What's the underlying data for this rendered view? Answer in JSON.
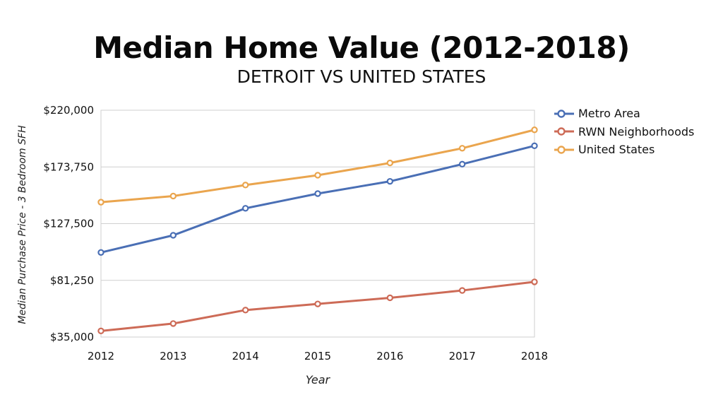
{
  "chart_data": {
    "type": "line",
    "title": "Median Home Value (2012-2018)",
    "subtitle": "DETROIT VS UNITED STATES",
    "xlabel": "Year",
    "ylabel": "Median Purchase Price - 3 Bedroom SFH",
    "x": [
      "2012",
      "2013",
      "2014",
      "2015",
      "2016",
      "2017",
      "2018"
    ],
    "ylim": [
      35000,
      220000
    ],
    "yticks": [
      35000,
      81250,
      127500,
      173750,
      220000
    ],
    "ytick_labels": [
      "$35,000",
      "$81,250",
      "$127,500",
      "$173,750",
      "$220,000"
    ],
    "grid": true,
    "legend_position": "right",
    "series": [
      {
        "name": "Metro Area",
        "color": "#4a6fb5",
        "values": [
          104000,
          118000,
          140000,
          152000,
          162000,
          176000,
          191000
        ]
      },
      {
        "name": "RWN Neighborhoods",
        "color": "#cd6b57",
        "values": [
          40000,
          46000,
          57000,
          62000,
          67000,
          73000,
          80000
        ]
      },
      {
        "name": "United States",
        "color": "#eaa54e",
        "values": [
          145000,
          150000,
          159000,
          167000,
          177000,
          189000,
          204000
        ]
      }
    ]
  }
}
